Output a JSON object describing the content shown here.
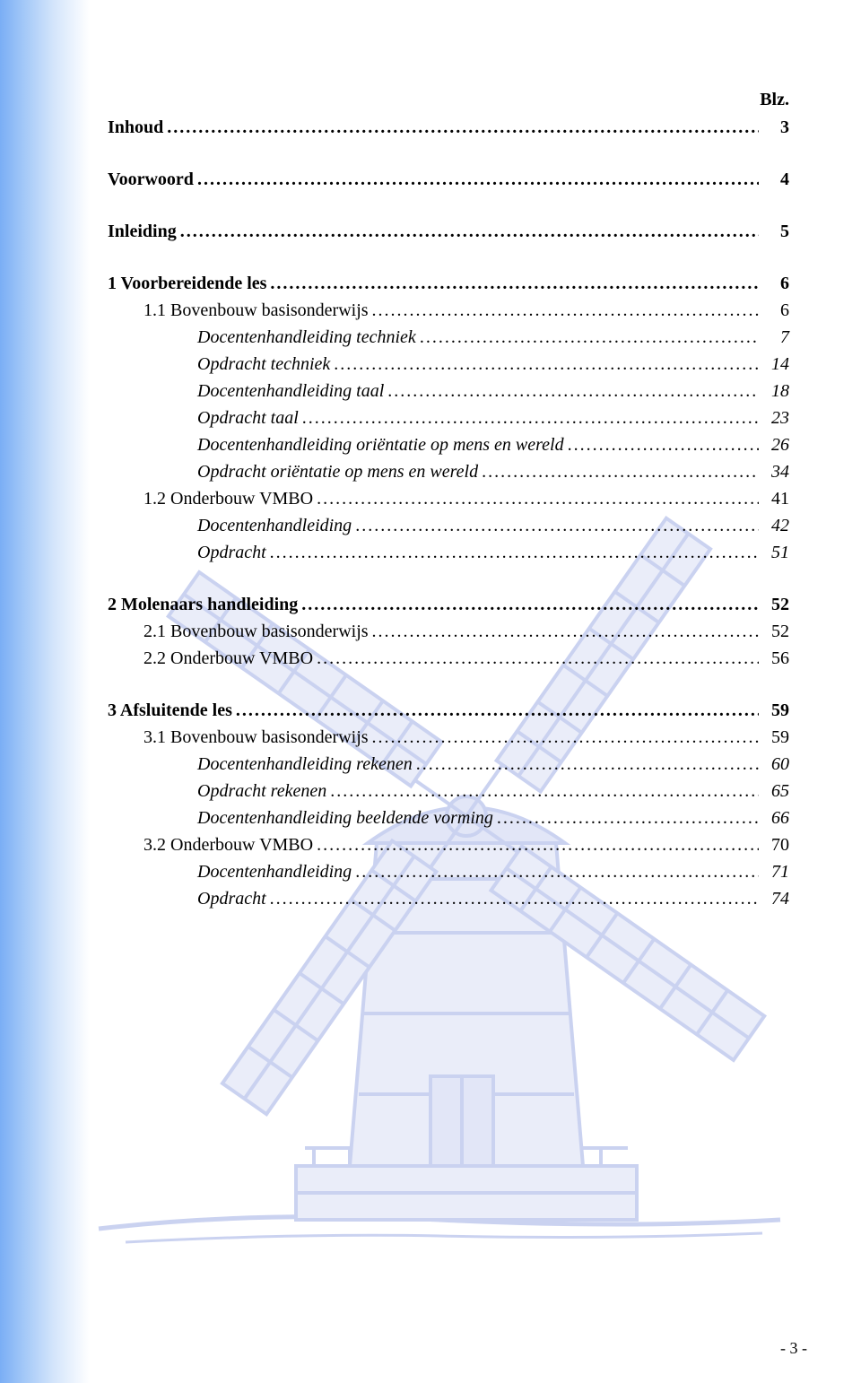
{
  "header": {
    "blz": "Blz."
  },
  "toc": [
    {
      "label": "Inhoud",
      "page": "3",
      "bold": true,
      "italic": false,
      "indent": 0,
      "gapAfter": true
    },
    {
      "label": "Voorwoord",
      "page": "4",
      "bold": true,
      "italic": false,
      "indent": 0,
      "gapAfter": true
    },
    {
      "label": "Inleiding",
      "page": "5",
      "bold": true,
      "italic": false,
      "indent": 0,
      "gapAfter": true
    },
    {
      "label": "1 Voorbereidende les",
      "page": "6",
      "bold": true,
      "italic": false,
      "indent": 0,
      "gapAfter": false
    },
    {
      "label": "1.1 Bovenbouw basisonderwijs",
      "page": "6",
      "bold": false,
      "italic": false,
      "indent": 1,
      "gapAfter": false
    },
    {
      "label": "Docentenhandleiding techniek",
      "page": "7",
      "bold": false,
      "italic": true,
      "indent": 2,
      "gapAfter": false
    },
    {
      "label": "Opdracht techniek",
      "page": "14",
      "bold": false,
      "italic": true,
      "indent": 2,
      "gapAfter": false
    },
    {
      "label": "Docentenhandleiding taal",
      "page": "18",
      "bold": false,
      "italic": true,
      "indent": 2,
      "gapAfter": false
    },
    {
      "label": "Opdracht taal",
      "page": "23",
      "bold": false,
      "italic": true,
      "indent": 2,
      "gapAfter": false
    },
    {
      "label": "Docentenhandleiding oriëntatie op mens en wereld",
      "page": "26",
      "bold": false,
      "italic": true,
      "indent": 2,
      "gapAfter": false
    },
    {
      "label": "Opdracht oriëntatie op mens en wereld",
      "page": "34",
      "bold": false,
      "italic": true,
      "indent": 2,
      "gapAfter": false
    },
    {
      "label": "1.2 Onderbouw VMBO",
      "page": "41",
      "bold": false,
      "italic": false,
      "indent": 1,
      "gapAfter": false
    },
    {
      "label": "Docentenhandleiding",
      "page": "42",
      "bold": false,
      "italic": true,
      "indent": 2,
      "gapAfter": false
    },
    {
      "label": "Opdracht",
      "page": "51",
      "bold": false,
      "italic": true,
      "indent": 2,
      "gapAfter": true
    },
    {
      "label": "2 Molenaars handleiding",
      "page": "52",
      "bold": true,
      "italic": false,
      "indent": 0,
      "gapAfter": false
    },
    {
      "label": "2.1 Bovenbouw basisonderwijs",
      "page": "52",
      "bold": false,
      "italic": false,
      "indent": 1,
      "gapAfter": false
    },
    {
      "label": "2.2 Onderbouw VMBO",
      "page": "56",
      "bold": false,
      "italic": false,
      "indent": 1,
      "gapAfter": true
    },
    {
      "label": "3 Afsluitende les",
      "page": "59",
      "bold": true,
      "italic": false,
      "indent": 0,
      "gapAfter": false
    },
    {
      "label": "3.1 Bovenbouw basisonderwijs",
      "page": "59",
      "bold": false,
      "italic": false,
      "indent": 1,
      "gapAfter": false
    },
    {
      "label": "Docentenhandleiding rekenen",
      "page": "60",
      "bold": false,
      "italic": true,
      "indent": 2,
      "gapAfter": false
    },
    {
      "label": "Opdracht rekenen",
      "page": "65",
      "bold": false,
      "italic": true,
      "indent": 2,
      "gapAfter": false
    },
    {
      "label": "Docentenhandleiding beeldende vorming",
      "page": "66",
      "bold": false,
      "italic": true,
      "indent": 2,
      "gapAfter": false
    },
    {
      "label": "3.2 Onderbouw VMBO",
      "page": "70",
      "bold": false,
      "italic": false,
      "indent": 1,
      "gapAfter": false
    },
    {
      "label": "Docentenhandleiding",
      "page": "71",
      "bold": false,
      "italic": true,
      "indent": 2,
      "gapAfter": false
    },
    {
      "label": "Opdracht",
      "page": "74",
      "bold": false,
      "italic": true,
      "indent": 2,
      "gapAfter": false
    }
  ],
  "colors": {
    "gradient_start": "#7aaef5",
    "windmill_stroke": "#6b7fd6",
    "windmill_fill": "#aeb9e9",
    "text": "#000000"
  },
  "footer": {
    "page_number": "- 3 -"
  }
}
